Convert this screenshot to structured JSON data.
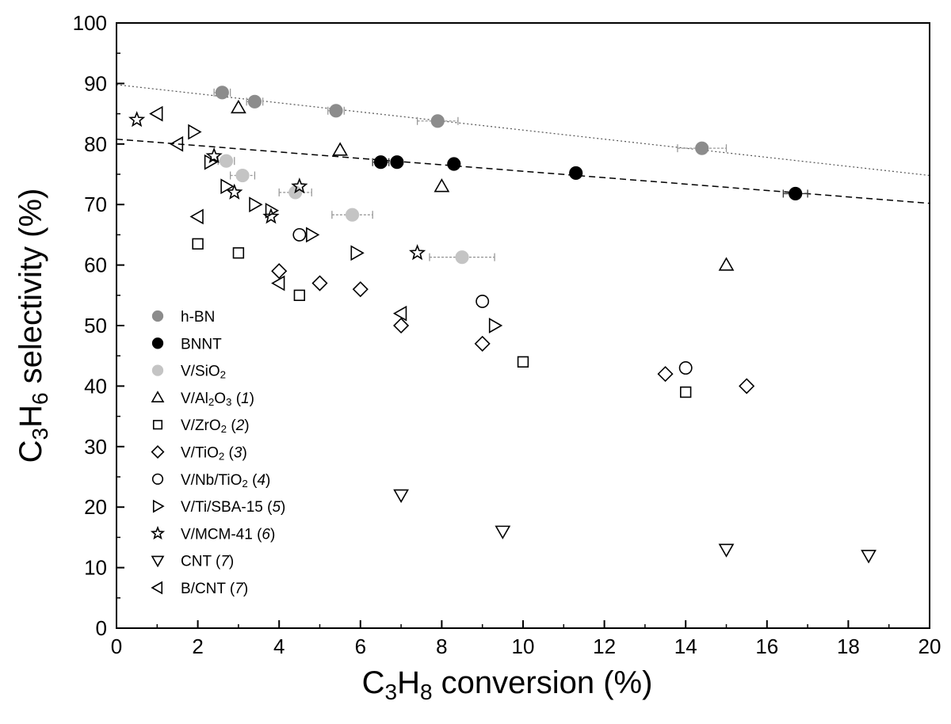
{
  "chart_data": {
    "type": "scatter",
    "title": "",
    "xlabel": {
      "parts": [
        {
          "t": "C"
        },
        {
          "t": "3",
          "sub": true
        },
        {
          "t": "H"
        },
        {
          "t": "8",
          "sub": true
        },
        {
          "t": " conversion (%)"
        }
      ]
    },
    "ylabel": {
      "parts": [
        {
          "t": "C"
        },
        {
          "t": "3",
          "sub": true
        },
        {
          "t": "H"
        },
        {
          "t": "6",
          "sub": true
        },
        {
          "t": " selectivity (%)"
        }
      ]
    },
    "xlim": [
      0,
      20
    ],
    "ylim": [
      0,
      100
    ],
    "xticks": [
      "0",
      "2",
      "4",
      "6",
      "8",
      "10",
      "12",
      "14",
      "16",
      "18",
      "20"
    ],
    "yticks": [
      "0",
      "10",
      "20",
      "30",
      "40",
      "50",
      "60",
      "70",
      "80",
      "90",
      "100"
    ],
    "grid": false,
    "legend_position": "bottom-left",
    "series": [
      {
        "name": "h-BN",
        "marker": "circle-filled",
        "color": "#8c8c8c",
        "label": [
          {
            "t": "h-BN"
          }
        ],
        "points": [
          [
            2.6,
            88.5
          ],
          [
            3.4,
            87.0
          ],
          [
            5.4,
            85.5
          ],
          [
            7.9,
            83.8
          ],
          [
            14.4,
            79.3
          ]
        ],
        "xerr": [
          0.2,
          0.2,
          0.2,
          0.5,
          0.6
        ]
      },
      {
        "name": "BNNT",
        "marker": "circle-filled",
        "color": "#000000",
        "label": [
          {
            "t": "BNNT"
          }
        ],
        "points": [
          [
            6.5,
            77.0
          ],
          [
            6.9,
            77.0
          ],
          [
            8.3,
            76.7
          ],
          [
            11.3,
            75.2
          ],
          [
            16.7,
            71.8
          ]
        ],
        "xerr": [
          0.2,
          0.1,
          0.1,
          0.1,
          0.3
        ]
      },
      {
        "name": "V/SiO2",
        "marker": "circle-filled",
        "color": "#c4c4c4",
        "label": [
          {
            "t": "V/SiO"
          },
          {
            "t": "2",
            "sub": true
          }
        ],
        "points": [
          [
            2.7,
            77.2
          ],
          [
            3.1,
            74.8
          ],
          [
            4.4,
            72.0
          ],
          [
            5.8,
            68.3
          ],
          [
            8.5,
            61.3
          ]
        ],
        "xerr": [
          0.2,
          0.3,
          0.4,
          0.5,
          0.8
        ]
      },
      {
        "name": "V/Al2O3",
        "marker": "triangle-up",
        "color": "#000000",
        "label": [
          {
            "t": "V/Al"
          },
          {
            "t": "2",
            "sub": true
          },
          {
            "t": "O"
          },
          {
            "t": "3",
            "sub": true
          },
          {
            "t": " ("
          },
          {
            "t": "1",
            "it": true
          },
          {
            "t": ")"
          }
        ],
        "points": [
          [
            3.0,
            86.0
          ],
          [
            5.5,
            79.0
          ],
          [
            8.0,
            73.0
          ],
          [
            15.0,
            60.0
          ]
        ]
      },
      {
        "name": "V/ZrO2",
        "marker": "square",
        "color": "#000000",
        "label": [
          {
            "t": "V/ZrO"
          },
          {
            "t": "2",
            "sub": true
          },
          {
            "t": " ("
          },
          {
            "t": "2",
            "it": true
          },
          {
            "t": ")"
          }
        ],
        "points": [
          [
            2.0,
            63.5
          ],
          [
            3.0,
            62.0
          ],
          [
            4.5,
            55.0
          ],
          [
            10.0,
            44.0
          ],
          [
            14.0,
            39.0
          ]
        ]
      },
      {
        "name": "V/TiO2",
        "marker": "diamond",
        "color": "#000000",
        "label": [
          {
            "t": "V/TiO"
          },
          {
            "t": "2",
            "sub": true
          },
          {
            "t": " ("
          },
          {
            "t": "3",
            "it": true
          },
          {
            "t": ")"
          }
        ],
        "points": [
          [
            4.0,
            59.0
          ],
          [
            5.0,
            57.0
          ],
          [
            6.0,
            56.0
          ],
          [
            7.0,
            50.0
          ],
          [
            9.0,
            47.0
          ],
          [
            13.5,
            42.0
          ],
          [
            15.5,
            40.0
          ]
        ]
      },
      {
        "name": "V/Nb/TiO2",
        "marker": "circle-open",
        "color": "#000000",
        "label": [
          {
            "t": "V/Nb/TiO"
          },
          {
            "t": "2",
            "sub": true
          },
          {
            "t": " ("
          },
          {
            "t": "4",
            "it": true
          },
          {
            "t": ")"
          }
        ],
        "points": [
          [
            4.5,
            65.0
          ],
          [
            9.0,
            54.0
          ],
          [
            14.0,
            43.0
          ]
        ]
      },
      {
        "name": "V/Ti/SBA-15",
        "marker": "triangle-right",
        "color": "#000000",
        "label": [
          {
            "t": "V/Ti/SBA-15 ("
          },
          {
            "t": "5",
            "it": true
          },
          {
            "t": ")"
          }
        ],
        "points": [
          [
            1.9,
            82.0
          ],
          [
            2.3,
            77.0
          ],
          [
            2.7,
            73.0
          ],
          [
            3.4,
            70.0
          ],
          [
            3.8,
            69.0
          ],
          [
            4.8,
            65.0
          ],
          [
            5.9,
            62.0
          ],
          [
            9.3,
            50.0
          ]
        ]
      },
      {
        "name": "V/MCM-41",
        "marker": "star",
        "color": "#000000",
        "label": [
          {
            "t": "V/MCM-41 ("
          },
          {
            "t": "6",
            "it": true
          },
          {
            "t": ")"
          }
        ],
        "points": [
          [
            0.5,
            84.0
          ],
          [
            2.4,
            78.0
          ],
          [
            2.9,
            72.0
          ],
          [
            3.8,
            68.0
          ],
          [
            4.5,
            73.0
          ],
          [
            7.4,
            62.0
          ]
        ]
      },
      {
        "name": "CNT",
        "marker": "triangle-down",
        "color": "#000000",
        "label": [
          {
            "t": "CNT ("
          },
          {
            "t": "7",
            "it": true
          },
          {
            "t": ")"
          }
        ],
        "points": [
          [
            7.0,
            22.0
          ],
          [
            9.5,
            16.0
          ],
          [
            15.0,
            13.0
          ],
          [
            18.5,
            12.0
          ]
        ]
      },
      {
        "name": "B/CNT",
        "marker": "triangle-left",
        "color": "#000000",
        "label": [
          {
            "t": "B/CNT ("
          },
          {
            "t": "7",
            "it": true
          },
          {
            "t": ")"
          }
        ],
        "points": [
          [
            1.0,
            85.0
          ],
          [
            1.5,
            80.0
          ],
          [
            2.0,
            68.0
          ],
          [
            4.0,
            57.0
          ],
          [
            7.0,
            52.0
          ]
        ]
      }
    ],
    "fit_lines": [
      {
        "style": "dotted",
        "points": [
          [
            0,
            89.8
          ],
          [
            20,
            74.8
          ]
        ]
      },
      {
        "style": "dashed",
        "points": [
          [
            0,
            80.8
          ],
          [
            20,
            70.2
          ]
        ]
      }
    ]
  }
}
